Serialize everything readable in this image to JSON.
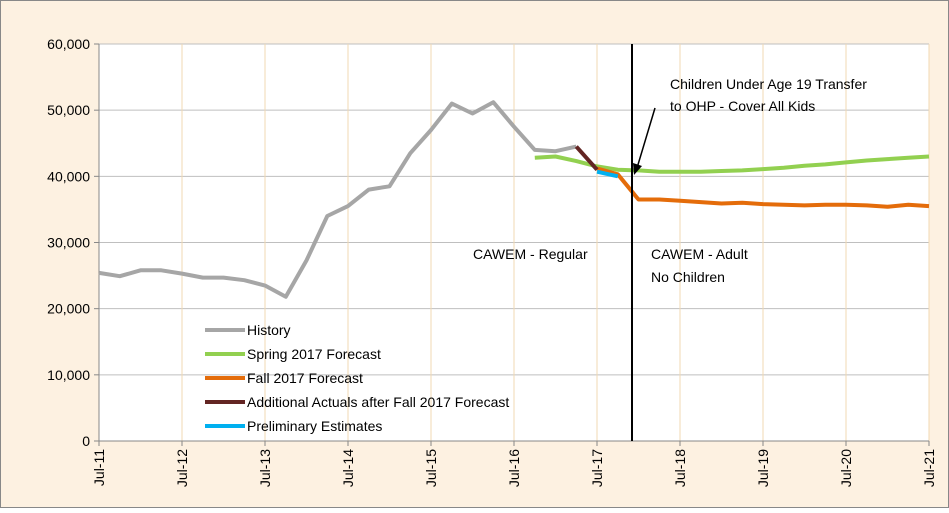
{
  "chart_data": {
    "type": "line",
    "categories": [
      "Jul-11",
      null,
      null,
      null,
      "Jul-12",
      null,
      null,
      null,
      "Jul-13",
      null,
      null,
      null,
      "Jul-14",
      null,
      null,
      null,
      "Jul-15",
      null,
      null,
      null,
      "Jul-16",
      null,
      null,
      null,
      "Jul-17",
      null,
      null,
      null,
      "Jul-18",
      null,
      null,
      null,
      "Jul-19",
      null,
      null,
      null,
      "Jul-20",
      null,
      null,
      null,
      "Jul-21"
    ],
    "series": [
      {
        "name": "History",
        "color": "#a6a6a6",
        "values": [
          25400,
          24900,
          25800,
          25800,
          25300,
          24700,
          24700,
          24300,
          23500,
          21800,
          27300,
          34000,
          35500,
          38000,
          38500,
          43500,
          47000,
          51000,
          49500,
          51200,
          47500,
          44000,
          43800,
          44500,
          null,
          null,
          null,
          null,
          null,
          null,
          null,
          null,
          null,
          null,
          null,
          null,
          null,
          null,
          null,
          null,
          null
        ]
      },
      {
        "name": "Spring 2017 Forecast",
        "color": "#92d050",
        "values": [
          null,
          null,
          null,
          null,
          null,
          null,
          null,
          null,
          null,
          null,
          null,
          null,
          null,
          null,
          null,
          null,
          null,
          null,
          null,
          null,
          null,
          42800,
          43000,
          42300,
          41500,
          41000,
          40900,
          40700,
          40700,
          40700,
          40800,
          40900,
          41100,
          41300,
          41600,
          41800,
          42100,
          42400,
          42600,
          42800,
          43000
        ]
      },
      {
        "name": "Fall 2017 Forecast",
        "color": "#e46c0a",
        "values": [
          null,
          null,
          null,
          null,
          null,
          null,
          null,
          null,
          null,
          null,
          null,
          null,
          null,
          null,
          null,
          null,
          null,
          null,
          null,
          null,
          null,
          null,
          null,
          null,
          41200,
          40300,
          36500,
          36500,
          36300,
          36100,
          35900,
          36000,
          35800,
          35700,
          35600,
          35700,
          35700,
          35600,
          35400,
          35700,
          35500
        ]
      },
      {
        "name": "Additional Actuals after Fall 2017 Forecast",
        "color": "#632523",
        "values": [
          null,
          null,
          null,
          null,
          null,
          null,
          null,
          null,
          null,
          null,
          null,
          null,
          null,
          null,
          null,
          null,
          null,
          null,
          null,
          null,
          null,
          null,
          null,
          44500,
          41000,
          null,
          null,
          null,
          null,
          null,
          null,
          null,
          null,
          null,
          null,
          null,
          null,
          null,
          null,
          null,
          null
        ]
      },
      {
        "name": "Preliminary Estimates",
        "color": "#00b0f0",
        "values": [
          null,
          null,
          null,
          null,
          null,
          null,
          null,
          null,
          null,
          null,
          null,
          null,
          null,
          null,
          null,
          null,
          null,
          null,
          null,
          null,
          null,
          null,
          null,
          null,
          40700,
          40000,
          null,
          null,
          null,
          null,
          null,
          null,
          null,
          null,
          null,
          null,
          null,
          null,
          null,
          null,
          null
        ]
      }
    ],
    "ylim": [
      0,
      60000
    ],
    "yticks": [
      0,
      {
        "value": 10000,
        "label": "10,000"
      },
      {
        "value": 20000,
        "label": "20,000"
      },
      {
        "value": 30000,
        "label": "30,000"
      },
      {
        "value": 40000,
        "label": "40,000"
      },
      {
        "value": 50000,
        "label": "50,000"
      },
      {
        "value": 60000,
        "label": "60,000"
      }
    ],
    "grid": true,
    "legend": "lower left",
    "annotations": [
      [
        "Children Under Age 19 Transfer",
        "to OHP - Cover All Kids"
      ],
      [
        "CAWEM - Regular"
      ],
      [
        "CAWEM - Adult",
        "No Children"
      ]
    ]
  }
}
